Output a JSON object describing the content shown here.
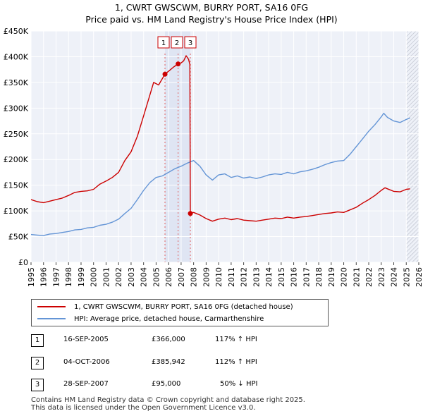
{
  "chart_data": {
    "type": "line",
    "title": "1, CWRT GWSCWM, BURRY PORT, SA16 0FG",
    "subtitle": "Price paid vs. HM Land Registry's House Price Index (HPI)",
    "xlim": [
      1995,
      2026
    ],
    "ylim": [
      0,
      450000
    ],
    "yticks": [
      {
        "v": 0,
        "label": "£0"
      },
      {
        "v": 50000,
        "label": "£50K"
      },
      {
        "v": 100000,
        "label": "£100K"
      },
      {
        "v": 150000,
        "label": "£150K"
      },
      {
        "v": 200000,
        "label": "£200K"
      },
      {
        "v": 250000,
        "label": "£250K"
      },
      {
        "v": 300000,
        "label": "£300K"
      },
      {
        "v": 350000,
        "label": "£350K"
      },
      {
        "v": 400000,
        "label": "£400K"
      },
      {
        "v": 450000,
        "label": "£450K"
      }
    ],
    "xticks": [
      "1995",
      "1996",
      "1997",
      "1998",
      "1999",
      "2000",
      "2001",
      "2002",
      "2003",
      "2004",
      "2005",
      "2006",
      "2007",
      "2008",
      "2009",
      "2010",
      "2011",
      "2012",
      "2013",
      "2014",
      "2015",
      "2016",
      "2017",
      "2018",
      "2019",
      "2020",
      "2021",
      "2022",
      "2023",
      "2024",
      "2025",
      "2026"
    ],
    "highlight_range": [
      2005.71,
      2007.74
    ],
    "forecast_from": 2025.0,
    "series": [
      {
        "name": "1, CWRT GWSCWM, BURRY PORT, SA16 0FG (detached house)",
        "color": "#cc0000",
        "points": [
          [
            1995.0,
            122000
          ],
          [
            1995.5,
            118000
          ],
          [
            1996.0,
            116000
          ],
          [
            1996.5,
            119000
          ],
          [
            1997.0,
            122000
          ],
          [
            1997.5,
            125000
          ],
          [
            1998.0,
            130000
          ],
          [
            1998.5,
            136000
          ],
          [
            1999.0,
            138000
          ],
          [
            1999.5,
            139000
          ],
          [
            2000.0,
            142000
          ],
          [
            2000.5,
            152000
          ],
          [
            2001.0,
            158000
          ],
          [
            2001.5,
            165000
          ],
          [
            2002.0,
            175000
          ],
          [
            2002.5,
            198000
          ],
          [
            2003.0,
            215000
          ],
          [
            2003.5,
            245000
          ],
          [
            2004.0,
            285000
          ],
          [
            2004.5,
            325000
          ],
          [
            2004.8,
            350000
          ],
          [
            2005.2,
            345000
          ],
          [
            2005.71,
            366000
          ],
          [
            2006.0,
            372000
          ],
          [
            2006.4,
            380000
          ],
          [
            2006.76,
            385942
          ],
          [
            2007.0,
            388000
          ],
          [
            2007.2,
            392000
          ],
          [
            2007.4,
            402000
          ],
          [
            2007.6,
            395000
          ],
          [
            2007.7,
            385000
          ],
          [
            2007.74,
            95000
          ],
          [
            2008.0,
            97000
          ],
          [
            2008.5,
            92000
          ],
          [
            2009.0,
            85000
          ],
          [
            2009.5,
            80000
          ],
          [
            2010.0,
            84000
          ],
          [
            2010.5,
            86000
          ],
          [
            2011.0,
            83000
          ],
          [
            2011.5,
            85000
          ],
          [
            2012.0,
            82000
          ],
          [
            2012.5,
            81000
          ],
          [
            2013.0,
            80000
          ],
          [
            2013.5,
            82000
          ],
          [
            2014.0,
            84000
          ],
          [
            2014.5,
            86000
          ],
          [
            2015.0,
            85000
          ],
          [
            2015.5,
            88000
          ],
          [
            2016.0,
            86000
          ],
          [
            2016.5,
            88000
          ],
          [
            2017.0,
            89000
          ],
          [
            2017.5,
            91000
          ],
          [
            2018.0,
            93000
          ],
          [
            2018.5,
            95000
          ],
          [
            2019.0,
            96000
          ],
          [
            2019.5,
            98000
          ],
          [
            2020.0,
            97000
          ],
          [
            2020.5,
            102000
          ],
          [
            2021.0,
            107000
          ],
          [
            2021.5,
            115000
          ],
          [
            2022.0,
            122000
          ],
          [
            2022.5,
            130000
          ],
          [
            2023.0,
            140000
          ],
          [
            2023.3,
            145000
          ],
          [
            2023.5,
            143000
          ],
          [
            2024.0,
            138000
          ],
          [
            2024.5,
            137000
          ],
          [
            2025.0,
            142000
          ],
          [
            2025.3,
            143000
          ]
        ]
      },
      {
        "name": "HPI: Average price, detached house, Carmarthenshire",
        "color": "#6495d6",
        "points": [
          [
            1995.0,
            54000
          ],
          [
            1995.5,
            53000
          ],
          [
            1996.0,
            52000
          ],
          [
            1996.5,
            55000
          ],
          [
            1997.0,
            56000
          ],
          [
            1997.5,
            58000
          ],
          [
            1998.0,
            60000
          ],
          [
            1998.5,
            63000
          ],
          [
            1999.0,
            64000
          ],
          [
            1999.5,
            67000
          ],
          [
            2000.0,
            68000
          ],
          [
            2000.5,
            72000
          ],
          [
            2001.0,
            74000
          ],
          [
            2001.5,
            78000
          ],
          [
            2002.0,
            84000
          ],
          [
            2002.5,
            95000
          ],
          [
            2003.0,
            105000
          ],
          [
            2003.5,
            122000
          ],
          [
            2004.0,
            140000
          ],
          [
            2004.5,
            155000
          ],
          [
            2005.0,
            165000
          ],
          [
            2005.5,
            168000
          ],
          [
            2006.0,
            175000
          ],
          [
            2006.5,
            182000
          ],
          [
            2007.0,
            187000
          ],
          [
            2007.5,
            193000
          ],
          [
            2008.0,
            198000
          ],
          [
            2008.5,
            187000
          ],
          [
            2009.0,
            170000
          ],
          [
            2009.5,
            160000
          ],
          [
            2010.0,
            170000
          ],
          [
            2010.5,
            172000
          ],
          [
            2011.0,
            165000
          ],
          [
            2011.5,
            168000
          ],
          [
            2012.0,
            164000
          ],
          [
            2012.5,
            166000
          ],
          [
            2013.0,
            163000
          ],
          [
            2013.5,
            166000
          ],
          [
            2014.0,
            170000
          ],
          [
            2014.5,
            172000
          ],
          [
            2015.0,
            171000
          ],
          [
            2015.5,
            175000
          ],
          [
            2016.0,
            172000
          ],
          [
            2016.5,
            176000
          ],
          [
            2017.0,
            178000
          ],
          [
            2017.5,
            181000
          ],
          [
            2018.0,
            185000
          ],
          [
            2018.5,
            190000
          ],
          [
            2019.0,
            194000
          ],
          [
            2019.5,
            197000
          ],
          [
            2020.0,
            198000
          ],
          [
            2020.5,
            210000
          ],
          [
            2021.0,
            225000
          ],
          [
            2021.5,
            240000
          ],
          [
            2022.0,
            255000
          ],
          [
            2022.5,
            268000
          ],
          [
            2023.0,
            283000
          ],
          [
            2023.2,
            290000
          ],
          [
            2023.5,
            282000
          ],
          [
            2024.0,
            275000
          ],
          [
            2024.5,
            272000
          ],
          [
            2025.0,
            278000
          ],
          [
            2025.3,
            281000
          ]
        ]
      }
    ],
    "markers": [
      {
        "label": "1",
        "x": 2005.71,
        "y": 366000
      },
      {
        "label": "2",
        "x": 2006.76,
        "y": 385942
      },
      {
        "label": "3",
        "x": 2007.74,
        "y": 95000
      }
    ]
  },
  "legend": {
    "items": [
      {
        "label": "1, CWRT GWSCWM, BURRY PORT, SA16 0FG (detached house)"
      },
      {
        "label": "HPI: Average price, detached house, Carmarthenshire"
      }
    ]
  },
  "transactions": [
    {
      "num": "1",
      "date": "16-SEP-2005",
      "price": "£366,000",
      "hpi": "117% ↑ HPI"
    },
    {
      "num": "2",
      "date": "04-OCT-2006",
      "price": "£385,942",
      "hpi": "112% ↑ HPI"
    },
    {
      "num": "3",
      "date": "28-SEP-2007",
      "price": "£95,000",
      "hpi": "50% ↓ HPI"
    }
  ],
  "footer": {
    "line1": "Contains HM Land Registry data © Crown copyright and database right 2025.",
    "line2": "This data is licensed under the Open Government Licence v3.0."
  }
}
